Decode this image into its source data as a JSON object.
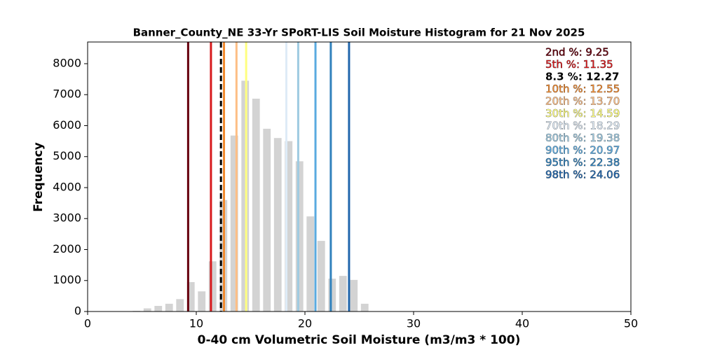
{
  "chart_data": {
    "type": "histogram",
    "title": "Banner_County_NE 33-Yr SPoRT-LIS Soil Moisture Histogram for 21 Nov 2025",
    "xlabel": "0-40 cm Volumetric Soil Moisture (m3/m3 * 100)",
    "ylabel": "Frequency",
    "bins": [
      4,
      5,
      6,
      7,
      8,
      9,
      10,
      11,
      12,
      13,
      14,
      15,
      16,
      17,
      18,
      19,
      20,
      21,
      22,
      23,
      24,
      25,
      26
    ],
    "values": [
      20,
      100,
      180,
      250,
      400,
      950,
      650,
      1620,
      3600,
      5680,
      7450,
      6870,
      5900,
      5600,
      5500,
      4850,
      3070,
      2280,
      1060,
      1150,
      1020,
      250
    ],
    "color": "#d3d3d3",
    "xlim": [
      0,
      50
    ],
    "xticks": [
      0,
      10,
      20,
      30,
      40,
      50
    ],
    "ylim": [
      0,
      8700
    ],
    "yticks": [
      0,
      1000,
      2000,
      3000,
      4000,
      5000,
      6000,
      7000,
      8000
    ],
    "lines": [
      {
        "label": "2nd %: 9.25",
        "value": 9.25,
        "color": "#67000d",
        "dashed": false
      },
      {
        "label": "5th %: 11.35",
        "value": 11.35,
        "color": "#d7191c",
        "dashed": false
      },
      {
        "label": "8.3 %: 12.27",
        "value": 12.27,
        "color": "#000000",
        "dashed": true
      },
      {
        "label": "10th %: 12.55",
        "value": 12.55,
        "color": "#f28a2e",
        "dashed": false
      },
      {
        "label": "20th %: 13.70",
        "value": 13.7,
        "color": "#fdbe85",
        "dashed": false
      },
      {
        "label": "30th %: 14.59",
        "value": 14.59,
        "color": "#ffff80",
        "dashed": false
      },
      {
        "label": "70th %: 18.29",
        "value": 18.29,
        "color": "#deebf7",
        "dashed": false
      },
      {
        "label": "80th %: 19.38",
        "value": 19.38,
        "color": "#9ecae1",
        "dashed": false
      },
      {
        "label": "90th %: 20.97",
        "value": 20.97,
        "color": "#5aaae0",
        "dashed": false
      },
      {
        "label": "95th %: 22.38",
        "value": 22.38,
        "color": "#3182bd",
        "dashed": false
      },
      {
        "label": "98th %: 24.06",
        "value": 24.06,
        "color": "#2166ac",
        "dashed": false
      }
    ]
  }
}
